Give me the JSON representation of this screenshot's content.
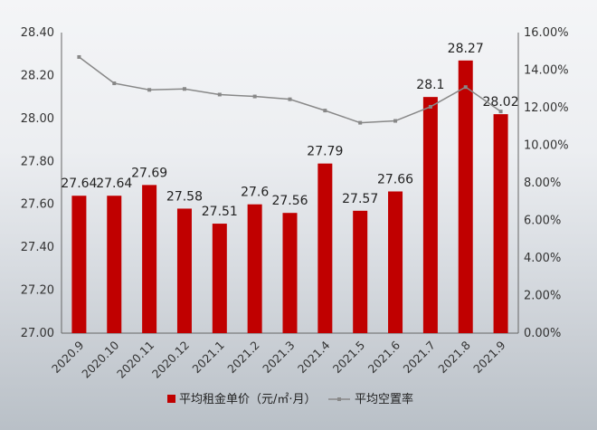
{
  "chart_data": {
    "type": "bar+line",
    "categories": [
      "2020.9",
      "2020.10",
      "2020.11",
      "2020.12",
      "2021.1",
      "2021.2",
      "2021.3",
      "2021.4",
      "2021.5",
      "2021.6",
      "2021.7",
      "2021.8",
      "2021.9"
    ],
    "series": [
      {
        "name": "平均租金单价（元/㎡·月）",
        "type": "bar",
        "axis": "left",
        "color": "#c00000",
        "values": [
          27.64,
          27.64,
          27.69,
          27.58,
          27.51,
          27.6,
          27.56,
          27.79,
          27.57,
          27.66,
          28.1,
          28.27,
          28.02
        ],
        "labels": [
          "27.64",
          "27.64",
          "27.69",
          "27.58",
          "27.51",
          "27.6",
          "27.56",
          "27.79",
          "27.57",
          "27.66",
          "28.1",
          "28.27",
          "28.02"
        ]
      },
      {
        "name": "平均空置率",
        "type": "line",
        "axis": "right",
        "color": "#888888",
        "values": [
          14.7,
          13.3,
          12.95,
          13.0,
          12.7,
          12.6,
          12.45,
          11.85,
          11.2,
          11.3,
          12.05,
          13.1,
          11.8
        ]
      }
    ],
    "y_left": {
      "min": 27.0,
      "max": 28.4,
      "step": 0.2,
      "ticks": [
        "27.00",
        "27.20",
        "27.40",
        "27.60",
        "27.80",
        "28.00",
        "28.20",
        "28.40"
      ]
    },
    "y_right": {
      "min": 0,
      "max": 16,
      "step": 2,
      "ticks": [
        "0.00%",
        "2.00%",
        "4.00%",
        "6.00%",
        "8.00%",
        "10.00%",
        "12.00%",
        "14.00%",
        "16.00%"
      ]
    },
    "legend_position": "bottom",
    "grid": false
  }
}
